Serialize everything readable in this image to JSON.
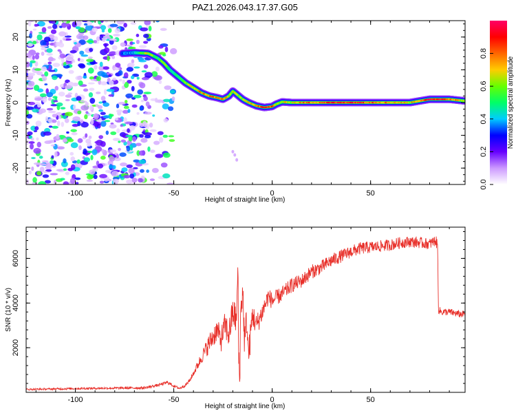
{
  "title": "PAZ1.2026.043.17.37.G05",
  "chart_data": [
    {
      "type": "heatmap",
      "xlabel": "Height of straight line (km)",
      "ylabel": "Frequency (Hz)",
      "xlim": [
        -125,
        98
      ],
      "ylim": [
        -25,
        25
      ],
      "xticks": [
        -100,
        -50,
        0,
        50
      ],
      "xtick_labels": [
        "-100",
        "-50",
        "0",
        "50"
      ],
      "yticks": [
        -20,
        -10,
        0,
        10,
        20
      ],
      "ytick_labels": [
        "-20",
        "-10",
        "0",
        "10",
        "20"
      ],
      "ridge": {
        "x": [
          -76,
          -70,
          -63,
          -58,
          -55,
          -52,
          -48,
          -44,
          -40,
          -36,
          -32,
          -28,
          -25,
          -22,
          -20,
          -18,
          -15,
          -12,
          -8,
          -4,
          0,
          2,
          5,
          10,
          15,
          20,
          30,
          40,
          50,
          60,
          70,
          75,
          80,
          85,
          90,
          98
        ],
        "y": [
          15,
          15.2,
          15,
          13.5,
          12,
          10,
          8,
          6,
          4.5,
          3,
          2,
          1.5,
          1,
          2,
          3.5,
          2.5,
          1,
          0,
          -1,
          -1.5,
          -1.2,
          -0.5,
          0.2,
          0,
          0,
          0,
          0,
          0,
          0,
          0,
          0,
          0.5,
          1,
          1,
          1,
          0.5
        ],
        "amplitude": [
          0.35,
          0.4,
          0.7,
          0.5,
          0.6,
          0.45,
          0.5,
          0.6,
          0.7,
          0.75,
          0.8,
          0.75,
          0.8,
          0.6,
          0.7,
          0.65,
          0.6,
          0.7,
          0.85,
          0.9,
          0.8,
          0.6,
          0.65,
          0.7,
          0.75,
          0.8,
          0.85,
          0.9,
          0.85,
          0.75,
          0.7,
          0.8,
          0.9,
          0.95,
          0.85,
          0.6
        ]
      },
      "noise_region_x": [
        -125,
        -50
      ],
      "colorbar": {
        "label": "Normalized spectral amplitude",
        "range": [
          0,
          1
        ],
        "ticks": [
          0.0,
          0.2,
          0.4,
          0.6,
          0.8
        ],
        "tick_labels": [
          "0.0",
          "0.2",
          "0.4",
          "0.6",
          "0.8"
        ],
        "colors": [
          "#ffffff",
          "#cc99ff",
          "#6600ff",
          "#0000ff",
          "#00ccff",
          "#00ff66",
          "#66ff00",
          "#ffcc00",
          "#ff6600",
          "#ff0000",
          "#ff0066"
        ]
      }
    },
    {
      "type": "line",
      "xlabel": "Height of straight line (km)",
      "ylabel": "SNR (10 * v/v)",
      "xlim": [
        -125,
        98
      ],
      "ylim": [
        0,
        7400
      ],
      "xticks": [
        -100,
        -50,
        0,
        50
      ],
      "xtick_labels": [
        "-100",
        "-50",
        "0",
        "50"
      ],
      "yticks": [
        2000,
        4000,
        6000
      ],
      "ytick_labels": [
        "2000",
        "4000",
        "6000"
      ],
      "series": [
        {
          "name": "SNR",
          "color": "#e8302a",
          "x": [
            -125,
            -100,
            -80,
            -65,
            -58,
            -53,
            -50,
            -47,
            -44,
            -42,
            -40,
            -38,
            -35,
            -32,
            -30,
            -28,
            -26,
            -24,
            -22,
            -20,
            -18,
            -17.5,
            -17,
            -16.5,
            -16,
            -15,
            -14,
            -13,
            -12,
            -10,
            -8,
            -5,
            -2,
            0,
            5,
            10,
            15,
            20,
            25,
            30,
            35,
            40,
            45,
            50,
            55,
            60,
            65,
            70,
            75,
            80,
            83,
            84,
            84.5,
            86,
            90,
            95,
            98
          ],
          "y": [
            130,
            170,
            190,
            200,
            320,
            450,
            280,
            180,
            330,
            520,
            850,
            1200,
            1700,
            2200,
            2500,
            2800,
            2350,
            3000,
            2600,
            3600,
            3200,
            5900,
            1500,
            700,
            3600,
            4600,
            2200,
            3300,
            1600,
            3500,
            3000,
            3600,
            4300,
            4100,
            4400,
            4800,
            5000,
            5400,
            5600,
            5900,
            6100,
            6300,
            6450,
            6500,
            6550,
            6600,
            6700,
            6750,
            6700,
            6650,
            6800,
            6600,
            3700,
            3600,
            3600,
            3500,
            3500
          ],
          "noise": [
            40,
            50,
            50,
            60,
            60,
            80,
            60,
            60,
            70,
            90,
            120,
            200,
            300,
            450,
            500,
            500,
            550,
            600,
            650,
            700,
            700,
            900,
            900,
            900,
            800,
            800,
            800,
            700,
            700,
            600,
            500,
            450,
            400,
            380,
            350,
            330,
            320,
            320,
            310,
            300,
            290,
            280,
            280,
            270,
            260,
            260,
            260,
            250,
            250,
            250,
            250,
            250,
            180,
            160,
            160,
            160,
            160
          ]
        }
      ]
    }
  ]
}
